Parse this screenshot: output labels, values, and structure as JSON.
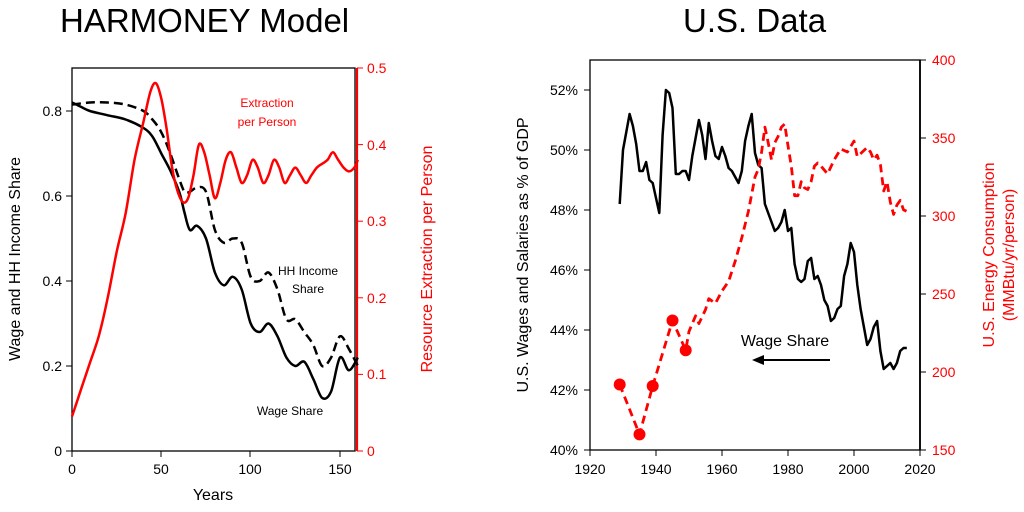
{
  "colors": {
    "black": "#000000",
    "red": "#ff0000"
  },
  "chart_data": [
    {
      "type": "line",
      "title": "HARMONEY Model",
      "xlabel": "Years",
      "ylabel_left": "Wage and HH Income Share",
      "ylabel_right": "Resource Extraction per Person",
      "xlim": [
        0,
        160
      ],
      "ylim_left": [
        0,
        0.9
      ],
      "ylim_right": [
        0,
        0.5
      ],
      "x_ticks": [
        "0",
        "50",
        "100",
        "150"
      ],
      "y_ticks_left": [
        "0",
        "0.2",
        "0.4",
        "0.6",
        "0.8"
      ],
      "y_ticks_right": [
        "0",
        "0.1",
        "0.2",
        "0.3",
        "0.4",
        "0.5"
      ],
      "annotations": {
        "extraction_1": "Extraction",
        "extraction_2": "per Person",
        "hh_1": "HH Income",
        "hh_2": "Share",
        "wage": "Wage Share"
      },
      "series": [
        {
          "name": "Wage Share",
          "axis": "left",
          "color": "#000000",
          "style": "solid",
          "x": [
            0,
            5,
            10,
            20,
            30,
            40,
            45,
            50,
            55,
            60,
            63,
            66,
            70,
            75,
            80,
            85,
            90,
            95,
            100,
            105,
            110,
            115,
            120,
            125,
            130,
            135,
            140,
            145,
            150,
            155,
            160
          ],
          "y": [
            0.82,
            0.81,
            0.8,
            0.79,
            0.78,
            0.76,
            0.74,
            0.7,
            0.66,
            0.61,
            0.56,
            0.52,
            0.53,
            0.5,
            0.42,
            0.39,
            0.41,
            0.38,
            0.3,
            0.28,
            0.3,
            0.27,
            0.22,
            0.2,
            0.21,
            0.17,
            0.125,
            0.14,
            0.22,
            0.19,
            0.22
          ]
        },
        {
          "name": "HH Income Share",
          "axis": "left",
          "color": "#000000",
          "style": "dashed",
          "x": [
            0,
            10,
            20,
            30,
            40,
            45,
            50,
            55,
            60,
            63,
            66,
            70,
            75,
            80,
            85,
            90,
            95,
            100,
            105,
            110,
            115,
            120,
            125,
            130,
            135,
            140,
            145,
            150,
            155,
            160
          ],
          "y": [
            0.815,
            0.82,
            0.82,
            0.815,
            0.8,
            0.78,
            0.75,
            0.7,
            0.64,
            0.61,
            0.61,
            0.62,
            0.61,
            0.52,
            0.49,
            0.5,
            0.49,
            0.41,
            0.4,
            0.42,
            0.38,
            0.31,
            0.31,
            0.28,
            0.25,
            0.2,
            0.22,
            0.27,
            0.24,
            0.2
          ]
        },
        {
          "name": "Extraction per Person",
          "axis": "right",
          "color": "#ff0000",
          "style": "solid",
          "x": [
            0,
            5,
            10,
            15,
            20,
            25,
            30,
            35,
            40,
            44,
            47,
            50,
            53,
            56,
            59,
            62,
            65,
            68,
            71,
            74,
            77,
            80,
            83,
            86,
            89,
            92,
            95,
            98,
            101,
            104,
            107,
            110,
            113,
            116,
            119,
            122,
            125,
            128,
            131,
            134,
            137,
            140,
            143,
            146,
            149,
            152,
            155,
            158,
            160
          ],
          "y": [
            0.045,
            0.08,
            0.115,
            0.15,
            0.2,
            0.26,
            0.31,
            0.38,
            0.43,
            0.47,
            0.48,
            0.46,
            0.42,
            0.37,
            0.34,
            0.325,
            0.33,
            0.36,
            0.4,
            0.39,
            0.36,
            0.33,
            0.35,
            0.38,
            0.39,
            0.37,
            0.35,
            0.36,
            0.38,
            0.37,
            0.35,
            0.36,
            0.38,
            0.37,
            0.35,
            0.36,
            0.37,
            0.36,
            0.35,
            0.36,
            0.37,
            0.375,
            0.38,
            0.39,
            0.38,
            0.37,
            0.365,
            0.37,
            0.38
          ]
        }
      ]
    },
    {
      "type": "line",
      "title": "U.S. Data",
      "ylabel_left": "U.S. Wages and Salaries as % of GDP",
      "ylabel_right_1": "U.S. Energy Consumption",
      "ylabel_right_2": "(MMBtu/yr/person)",
      "xlim": [
        1920,
        2020
      ],
      "ylim_left": [
        40,
        53
      ],
      "ylim_right": [
        150,
        400
      ],
      "x_ticks": [
        "1920",
        "1940",
        "1960",
        "1980",
        "2000",
        "2020"
      ],
      "y_ticks_left": [
        "40%",
        "42%",
        "44%",
        "46%",
        "48%",
        "50%",
        "52%"
      ],
      "y_ticks_right": [
        "150",
        "200",
        "250",
        "300",
        "350",
        "400"
      ],
      "annotations": {
        "wage_arrow": "Wage Share"
      },
      "series": [
        {
          "name": "Wage Share",
          "axis": "left",
          "color": "#000000",
          "style": "solid",
          "x": [
            1929,
            1930,
            1931,
            1932,
            1933,
            1934,
            1935,
            1936,
            1937,
            1938,
            1939,
            1940,
            1941,
            1942,
            1943,
            1944,
            1945,
            1946,
            1947,
            1948,
            1949,
            1950,
            1951,
            1952,
            1953,
            1954,
            1955,
            1956,
            1957,
            1958,
            1959,
            1960,
            1961,
            1962,
            1963,
            1964,
            1965,
            1966,
            1967,
            1968,
            1969,
            1970,
            1971,
            1972,
            1973,
            1974,
            1975,
            1976,
            1977,
            1978,
            1979,
            1980,
            1981,
            1982,
            1983,
            1984,
            1985,
            1986,
            1987,
            1988,
            1989,
            1990,
            1991,
            1992,
            1993,
            1994,
            1995,
            1996,
            1997,
            1998,
            1999,
            2000,
            2001,
            2002,
            2003,
            2004,
            2005,
            2006,
            2007,
            2008,
            2009,
            2010,
            2011,
            2012,
            2013,
            2014,
            2015,
            2016
          ],
          "y": [
            48.2,
            50.0,
            50.6,
            51.2,
            50.8,
            50.2,
            49.3,
            49.3,
            49.6,
            49.0,
            48.9,
            48.4,
            47.9,
            50.5,
            52.0,
            51.9,
            51.4,
            49.2,
            49.2,
            49.3,
            49.3,
            49.0,
            49.8,
            50.4,
            51.0,
            50.5,
            49.7,
            50.9,
            50.3,
            49.8,
            49.7,
            50.1,
            49.8,
            49.4,
            49.3,
            49.1,
            48.9,
            49.3,
            50.3,
            50.8,
            51.2,
            49.9,
            49.5,
            49.4,
            48.2,
            47.9,
            47.6,
            47.3,
            47.4,
            47.6,
            48.0,
            47.3,
            47.4,
            46.2,
            45.7,
            45.6,
            45.7,
            46.3,
            46.4,
            45.7,
            45.8,
            45.5,
            45.0,
            44.8,
            44.3,
            44.4,
            44.7,
            44.8,
            45.8,
            46.2,
            46.9,
            46.6,
            45.5,
            44.7,
            44.1,
            43.5,
            43.7,
            44.1,
            44.3,
            43.3,
            42.7,
            42.8,
            42.9,
            42.7,
            42.9,
            43.3,
            43.4,
            43.4
          ]
        },
        {
          "name": "Energy Consumption",
          "axis": "right",
          "color": "#ff0000",
          "style": "dashed",
          "x": [
            1929,
            1935,
            1939,
            1945,
            1949,
            1950,
            1952,
            1953,
            1955,
            1956,
            1958,
            1960,
            1962,
            1964,
            1966,
            1968,
            1970,
            1971,
            1972,
            1973,
            1974,
            1975,
            1976,
            1977,
            1978,
            1979,
            1980,
            1981,
            1982,
            1983,
            1984,
            1985,
            1986,
            1987,
            1988,
            1989,
            1990,
            1992,
            1994,
            1996,
            1998,
            2000,
            2001,
            2002,
            2004,
            2005,
            2006,
            2007,
            2008,
            2009,
            2010,
            2011,
            2012,
            2013,
            2014,
            2015,
            2016
          ],
          "y": [
            192,
            160,
            191,
            233,
            214,
            226,
            236,
            231,
            240,
            247,
            244,
            252,
            258,
            271,
            286,
            303,
            325,
            330,
            341,
            357,
            347,
            336,
            347,
            351,
            357,
            359,
            345,
            332,
            313,
            313,
            322,
            318,
            317,
            322,
            332,
            334,
            332,
            327,
            336,
            343,
            341,
            348,
            338,
            340,
            344,
            341,
            336,
            339,
            333,
            316,
            322,
            309,
            301,
            307,
            310,
            304,
            303
          ]
        },
        {
          "name": "Energy Consumption (markers)",
          "axis": "right",
          "color": "#ff0000",
          "style": "markers",
          "x": [
            1929,
            1935,
            1939,
            1945,
            1949
          ],
          "y": [
            192,
            160,
            191,
            233,
            214
          ]
        }
      ]
    }
  ]
}
